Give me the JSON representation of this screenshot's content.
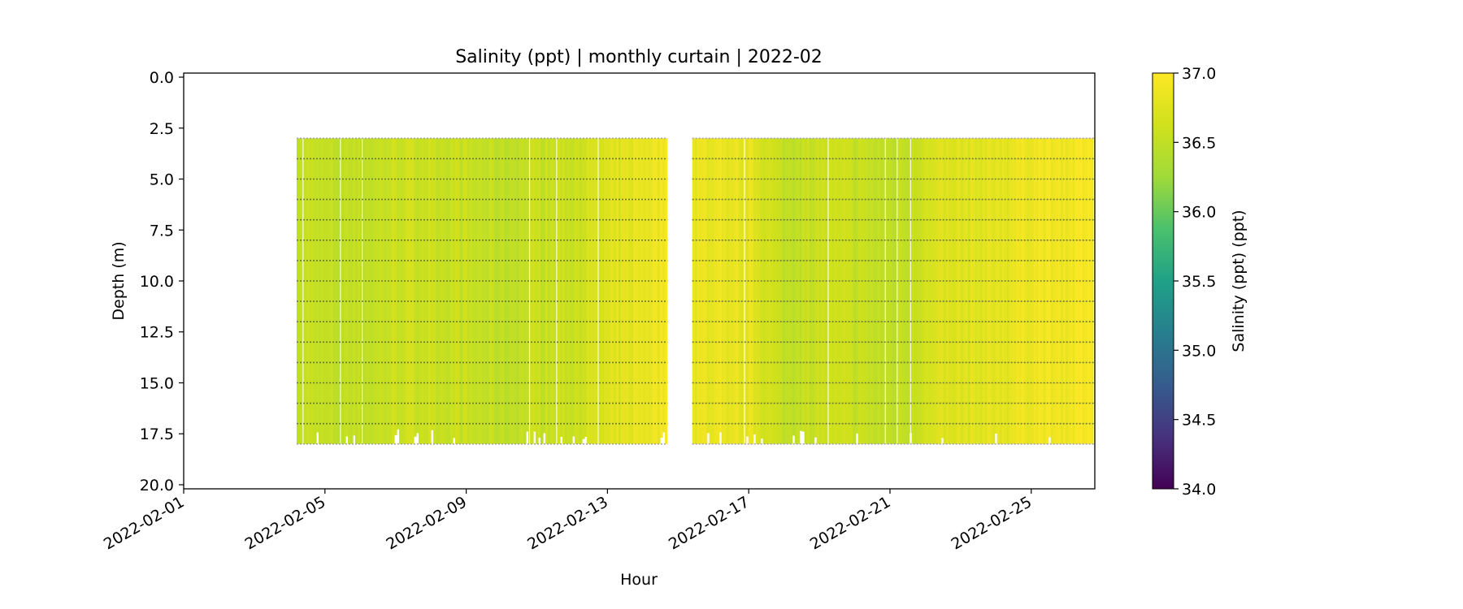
{
  "chart_data": {
    "type": "heatmap",
    "title": "Salinity (ppt) | monthly curtain | 2022-02",
    "xlabel": "Hour",
    "ylabel": "Depth (m)",
    "x_ticks": [
      "2022-02-01",
      "2022-02-05",
      "2022-02-09",
      "2022-02-13",
      "2022-02-17",
      "2022-02-21",
      "2022-02-25"
    ],
    "x_tick_days": [
      1,
      5,
      9,
      13,
      17,
      21,
      25
    ],
    "xlim_days": [
      1,
      26.8
    ],
    "y_ticks": [
      "0.0",
      "2.5",
      "5.0",
      "7.5",
      "10.0",
      "12.5",
      "15.0",
      "17.5",
      "20.0"
    ],
    "y_tick_values": [
      0,
      2.5,
      5,
      7.5,
      10,
      12.5,
      15,
      17.5,
      20
    ],
    "ylim": [
      20.2,
      -0.2
    ],
    "y_inverted": true,
    "data_segments": [
      {
        "start_day": 4.2,
        "end_day": 14.7
      },
      {
        "start_day": 15.4,
        "end_day": 26.8
      }
    ],
    "depth_range": [
      3.0,
      18.0
    ],
    "sensor_depths": [
      3,
      4,
      5,
      6,
      7,
      8,
      9,
      10,
      11,
      12,
      13,
      14,
      15,
      16,
      17,
      18
    ],
    "salinity_profile": {
      "days": [
        4.2,
        5.0,
        6.0,
        7.0,
        8.0,
        9.0,
        10.0,
        11.0,
        12.0,
        13.0,
        14.0,
        14.7,
        15.4,
        16.0,
        17.0,
        18.0,
        19.0,
        20.0,
        21.0,
        22.0,
        23.0,
        24.0,
        25.0,
        26.0,
        26.8
      ],
      "values": [
        36.55,
        36.5,
        36.5,
        36.6,
        36.6,
        36.55,
        36.5,
        36.55,
        36.6,
        36.7,
        36.85,
        36.9,
        36.85,
        36.85,
        36.8,
        36.5,
        36.6,
        36.55,
        36.5,
        36.65,
        36.75,
        36.8,
        36.9,
        36.9,
        36.95
      ]
    },
    "colorbar": {
      "label": "Salinity (ppt) (ppt)",
      "min": 34.0,
      "max": 37.0,
      "ticks": [
        "34.0",
        "34.5",
        "35.0",
        "35.5",
        "36.0",
        "36.5",
        "37.0"
      ],
      "tick_values": [
        34.0,
        34.5,
        35.0,
        35.5,
        36.0,
        36.5,
        37.0
      ],
      "colormap": "viridis"
    }
  }
}
